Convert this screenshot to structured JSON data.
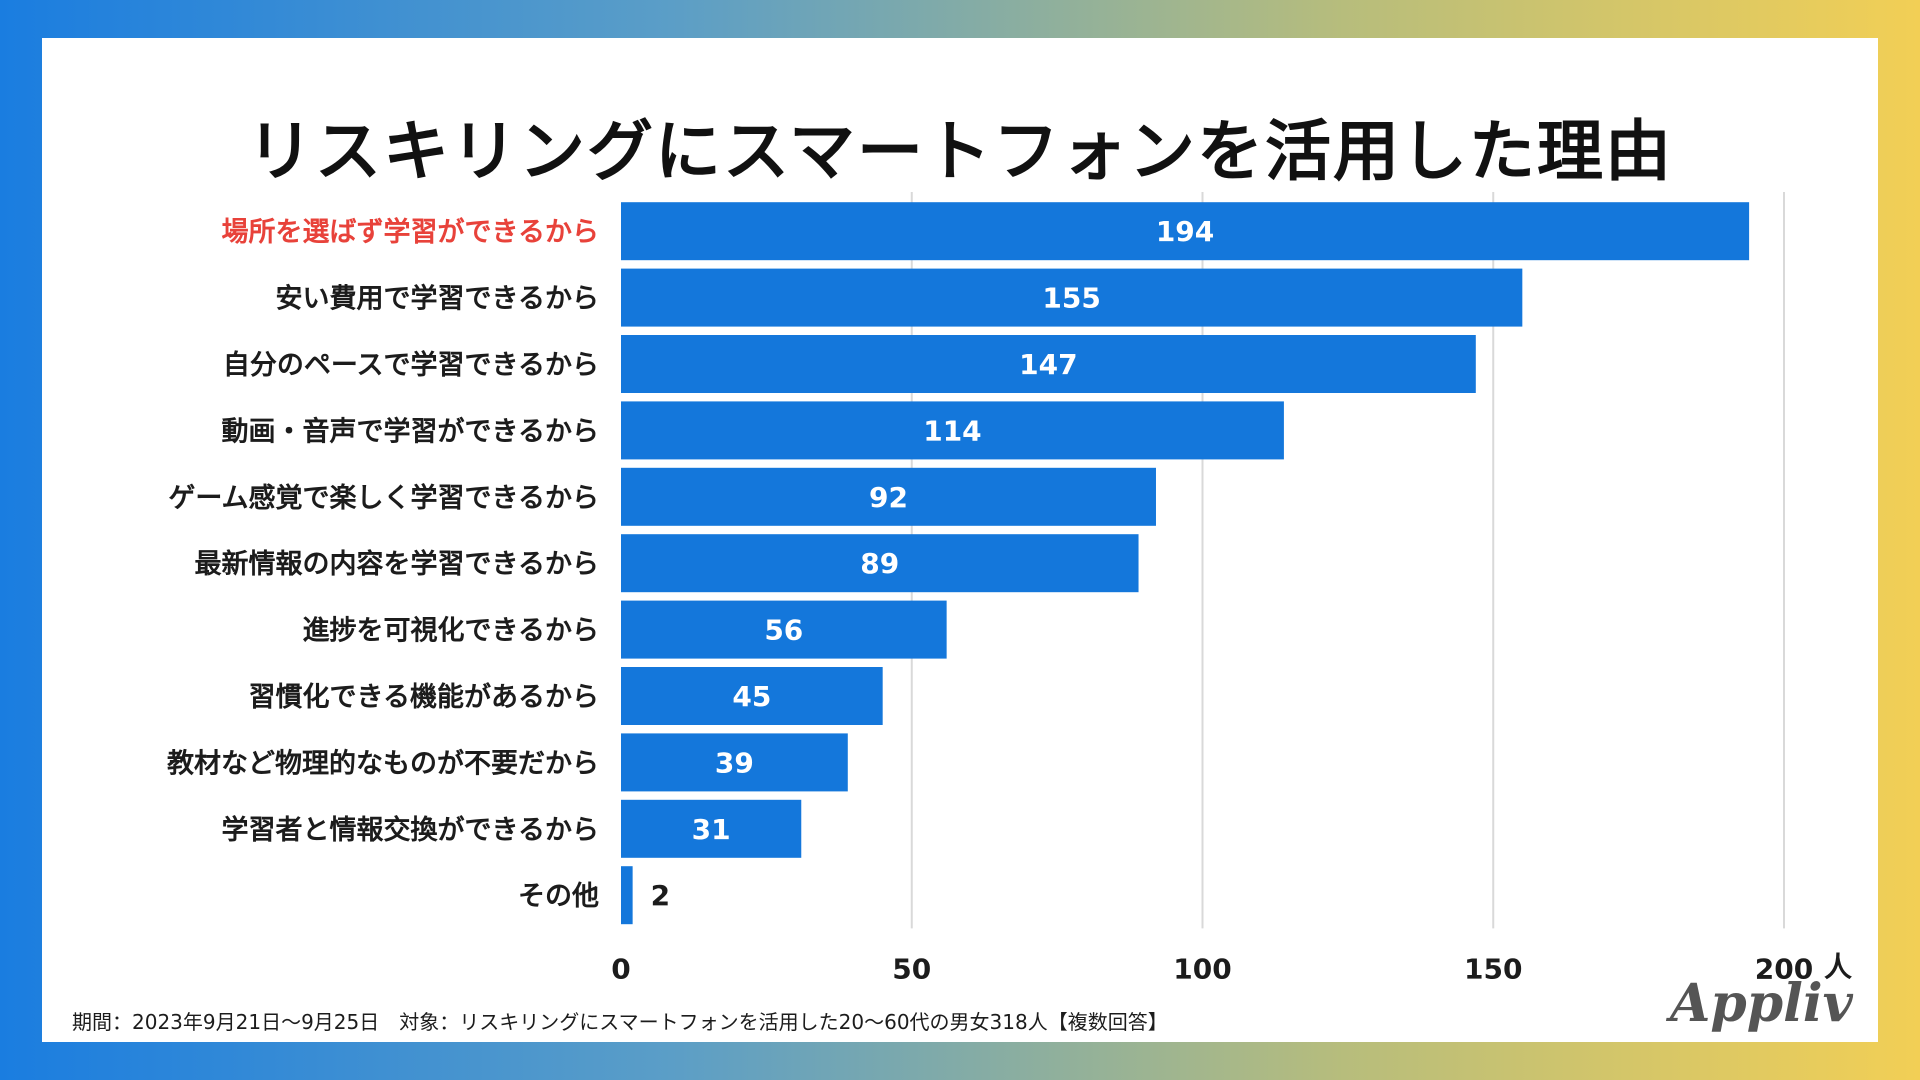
{
  "chart_data": {
    "type": "bar",
    "orientation": "horizontal",
    "title": "リスキリングにスマートフォンを活用した理由",
    "categories": [
      "場所を選ばず学習ができるから",
      "安い費用で学習できるから",
      "自分のペースで学習できるから",
      "動画・音声で学習ができるから",
      "ゲーム感覚で楽しく学習できるから",
      "最新情報の内容を学習できるから",
      "進捗を可視化できるから",
      "習慣化できる機能があるから",
      "教材など物理的なものが不要だから",
      "学習者と情報交換ができるから",
      "その他"
    ],
    "values": [
      194,
      155,
      147,
      114,
      92,
      89,
      56,
      45,
      39,
      31,
      2
    ],
    "highlight_index": 0,
    "xlim": [
      0,
      200
    ],
    "xticks": [
      0,
      50,
      100,
      150,
      200
    ],
    "xunit": "人",
    "grid": true,
    "bar_color": "#1477db",
    "highlight_label_color": "#e8423a"
  },
  "footnote": "期間：2023年9月21日〜9月25日　対象：リスキリングにスマートフォンを活用した20〜60代の男女318人【複数回答】",
  "logo": "Appliv"
}
